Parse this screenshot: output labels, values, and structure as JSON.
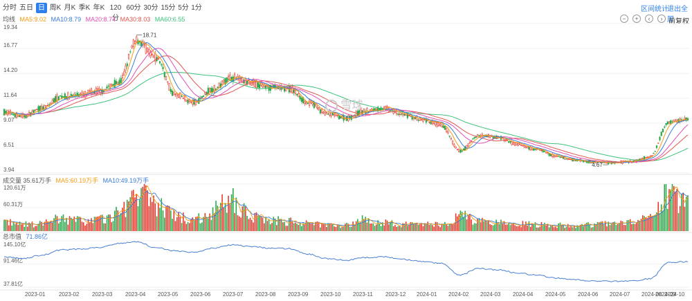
{
  "toolbar": {
    "periods": [
      "分时",
      "五日",
      "日K",
      "周K",
      "月K",
      "季K",
      "年K",
      "120分",
      "60分",
      "30分",
      "15分",
      "5分",
      "1分"
    ],
    "active_period": "日K",
    "interval_stats": "区间统计",
    "fullscreen": "退出全屏",
    "fuquan": "前复权"
  },
  "watermark": "雪球",
  "legend_price": {
    "label": "均线",
    "ma5": "MA5:9.02",
    "ma10": "MA10:8.79",
    "ma20": "MA20:8.74",
    "ma30": "MA30:8.03",
    "ma60": "MA60:6.55"
  },
  "legend_volume": {
    "label": "成交量 35.61万手",
    "ma5": "MA5:60.19万手",
    "ma10": "MA10:49.19万手"
  },
  "legend_mktcap": {
    "label": "总市值",
    "value": "71.86亿"
  },
  "colors": {
    "up": "#e6392b",
    "down": "#2aa84a",
    "ma5": "#f39c12",
    "ma10": "#3a7bd5",
    "ma20": "#e04fb5",
    "ma30": "#e0574f",
    "ma60": "#3cc27a",
    "mktcap": "#4a7fd1"
  },
  "chart_data": {
    "type": "candlestick",
    "price_axis": {
      "ticks": [
        "19.34",
        "16.77",
        "14.20",
        "11.64",
        "9.07",
        "6.51",
        "3.94"
      ],
      "range": [
        3.94,
        19.34
      ]
    },
    "volume_axis": {
      "ticks": [
        "120.61万",
        "60.31万"
      ],
      "range": [
        0,
        120.61
      ]
    },
    "mktcap_axis": {
      "ticks": [
        "145.10亿",
        "91.46亿",
        "37.81亿"
      ],
      "range": [
        37.81,
        145.1
      ]
    },
    "x_ticks": [
      "2023-01",
      "2023-02",
      "2023-03",
      "2023-04",
      "2023-05",
      "2023-06",
      "2023-07",
      "2023-08",
      "2023-09",
      "2023-10",
      "2023-11",
      "2023-12",
      "2024-01",
      "2024-02",
      "2024-03",
      "2024-04",
      "2024-05",
      "2024-06",
      "2024-07",
      "2024-08",
      "2024-09",
      "2024-10"
    ],
    "annotations": {
      "high": "18.71",
      "low": "4.67"
    },
    "close_anchors": [
      10.2,
      9.8,
      10.6,
      11.8,
      12.0,
      12.4,
      13.2,
      17.6,
      15.8,
      12.0,
      11.2,
      12.6,
      13.8,
      13.2,
      12.8,
      12.6,
      11.2,
      10.1,
      9.6,
      10.3,
      10.6,
      10.0,
      9.4,
      8.9,
      6.2,
      7.8,
      7.6,
      6.9,
      6.4,
      5.7,
      5.3,
      5.1,
      5.0,
      5.1,
      5.6,
      9.2,
      9.5
    ],
    "mktcap_anchors": [
      108,
      104,
      112,
      124,
      126,
      130,
      139,
      143,
      129,
      122,
      118,
      128,
      136,
      132,
      128,
      127,
      114,
      104,
      100,
      106,
      108,
      102,
      97,
      93,
      66,
      81,
      78,
      71,
      66,
      59,
      55,
      52,
      51,
      52,
      57,
      95,
      97
    ],
    "volume_anchors": [
      25,
      18,
      20,
      35,
      28,
      30,
      45,
      110,
      70,
      40,
      30,
      55,
      85,
      40,
      30,
      25,
      20,
      18,
      16,
      30,
      22,
      18,
      20,
      18,
      45,
      25,
      22,
      20,
      18,
      16,
      15,
      18,
      20,
      22,
      40,
      100,
      70
    ],
    "ma_series": [
      "MA5",
      "MA10",
      "MA20",
      "MA30",
      "MA60"
    ]
  }
}
